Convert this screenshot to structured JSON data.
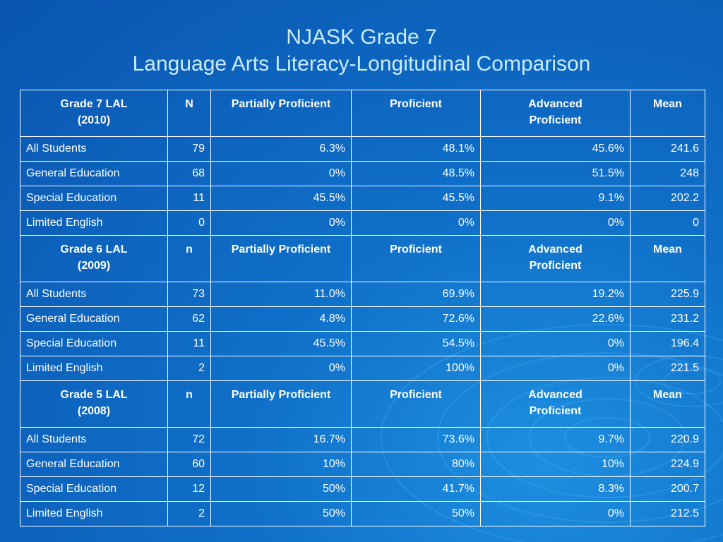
{
  "title": {
    "line1": "NJASK Grade 7",
    "line2": "Language Arts Literacy-Longitudinal Comparison"
  },
  "sections": [
    {
      "header": {
        "group_line1": "Grade 7 LAL",
        "group_line2": "(2010)",
        "n": "N",
        "partially": "Partially Proficient",
        "proficient": "Proficient",
        "advanced_line1": "Advanced",
        "advanced_line2": "Proficient",
        "mean": "Mean"
      },
      "rows": [
        {
          "group": "All Students",
          "n": "79",
          "partially": "6.3%",
          "proficient": "48.1%",
          "advanced": "45.6%",
          "mean": "241.6"
        },
        {
          "group": "General Education",
          "n": "68",
          "partially": "0%",
          "proficient": "48.5%",
          "advanced": "51.5%",
          "mean": "248"
        },
        {
          "group": "Special Education",
          "n": "11",
          "partially": "45.5%",
          "proficient": "45.5%",
          "advanced": "9.1%",
          "mean": "202.2"
        },
        {
          "group": "Limited English",
          "n": "0",
          "partially": "0%",
          "proficient": "0%",
          "advanced": "0%",
          "mean": "0"
        }
      ]
    },
    {
      "header": {
        "group_line1": "Grade 6 LAL",
        "group_line2": "(2009)",
        "n": "n",
        "partially": "Partially Proficient",
        "proficient": "Proficient",
        "advanced_line1": "Advanced",
        "advanced_line2": "Proficient",
        "mean": "Mean"
      },
      "rows": [
        {
          "group": "All Students",
          "n": "73",
          "partially": "11.0%",
          "proficient": "69.9%",
          "advanced": "19.2%",
          "mean": "225.9"
        },
        {
          "group": "General Education",
          "n": "62",
          "partially": "4.8%",
          "proficient": "72.6%",
          "advanced": "22.6%",
          "mean": "231.2"
        },
        {
          "group": "Special Education",
          "n": "11",
          "partially": "45.5%",
          "proficient": "54.5%",
          "advanced": "0%",
          "mean": "196.4"
        },
        {
          "group": "Limited English",
          "n": "2",
          "partially": "0%",
          "proficient": "100%",
          "advanced": "0%",
          "mean": "221.5"
        }
      ]
    },
    {
      "header": {
        "group_line1": "Grade 5 LAL",
        "group_line2": "(2008)",
        "n": "n",
        "partially": "Partially Proficient",
        "proficient": "Proficient",
        "advanced_line1": "Advanced",
        "advanced_line2": "Proficient",
        "mean": "Mean"
      },
      "rows": [
        {
          "group": "All Students",
          "n": "72",
          "partially": "16.7%",
          "proficient": "73.6%",
          "advanced": "9.7%",
          "mean": "220.9"
        },
        {
          "group": "General Education",
          "n": "60",
          "partially": "10%",
          "proficient": "80%",
          "advanced": "10%",
          "mean": "224.9"
        },
        {
          "group": "Special Education",
          "n": "12",
          "partially": "50%",
          "proficient": "41.7%",
          "advanced": "8.3%",
          "mean": "200.7"
        },
        {
          "group": "Limited English",
          "n": "2",
          "partially": "50%",
          "proficient": "50%",
          "advanced": "0%",
          "mean": "212.5"
        }
      ]
    }
  ]
}
